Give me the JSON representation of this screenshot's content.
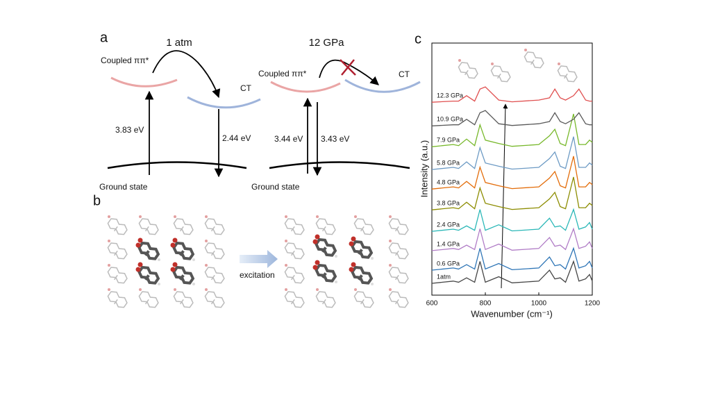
{
  "panel_a": {
    "label": "a",
    "left": {
      "title": "1 atm",
      "excited_label": "Coupled ππ*",
      "ct_label": "CT",
      "absorption": "3.83 eV",
      "emission": "2.44 eV",
      "ground_label": "Ground state"
    },
    "right": {
      "title": "12 GPa",
      "excited_label": "Coupled ππ*",
      "ct_label": "CT",
      "absorption": "3.44 eV",
      "emission": "3.43 eV",
      "ground_label": "Ground state"
    }
  },
  "panel_b": {
    "label": "b",
    "arrow_label": "excitation"
  },
  "chart_data": {
    "type": "line",
    "label": "c",
    "x_label": "Wavenumber (cm⁻¹)",
    "y_label": "Intensity (a.u.)",
    "x": [
      600,
      680,
      700,
      730,
      760,
      780,
      800,
      850,
      900,
      1000,
      1040,
      1060,
      1080,
      1100,
      1130,
      1150,
      1175,
      1190,
      1200
    ],
    "xlim": [
      600,
      1200
    ],
    "xticks": [
      600,
      800,
      1000,
      1200
    ],
    "ylim": [
      0,
      11.5
    ],
    "series": [
      {
        "name": "1atm",
        "color": "#454545",
        "values": [
          0.54,
          0.64,
          0.59,
          0.79,
          0.59,
          1.54,
          0.59,
          0.84,
          0.56,
          0.64,
          1.14,
          0.74,
          0.79,
          0.59,
          1.54,
          0.64,
          0.74,
          0.94,
          0.64
        ]
      },
      {
        "name": "0.6 GPa",
        "color": "#2e75b6",
        "values": [
          1.14,
          1.24,
          1.19,
          1.39,
          1.19,
          2.14,
          1.19,
          1.44,
          1.16,
          1.24,
          1.74,
          1.34,
          1.39,
          1.19,
          2.14,
          1.24,
          1.34,
          1.54,
          1.24
        ]
      },
      {
        "name": "1.4 GPa",
        "color": "#b07cc6",
        "values": [
          2.03,
          2.13,
          2.08,
          2.28,
          2.08,
          3.03,
          2.08,
          2.33,
          2.05,
          2.13,
          2.63,
          2.23,
          2.28,
          2.08,
          3.03,
          2.13,
          2.23,
          2.43,
          2.13
        ]
      },
      {
        "name": "2.4 GPa",
        "color": "#2ab7b7",
        "values": [
          2.91,
          3.01,
          2.96,
          3.16,
          2.96,
          3.91,
          2.96,
          3.21,
          2.93,
          3.01,
          3.51,
          3.11,
          3.16,
          2.96,
          3.91,
          3.01,
          3.11,
          3.31,
          3.01
        ]
      },
      {
        "name": "3.8 GPa",
        "color": "#8c8c00",
        "values": [
          3.89,
          3.99,
          3.94,
          4.24,
          3.94,
          4.89,
          4.19,
          4.04,
          3.91,
          3.99,
          4.39,
          4.69,
          4.04,
          3.94,
          5.39,
          3.99,
          3.99,
          4.19,
          4.09
        ]
      },
      {
        "name": "4.8 GPa",
        "color": "#e36c09",
        "values": [
          4.84,
          4.94,
          4.89,
          5.19,
          4.89,
          5.84,
          5.14,
          4.99,
          4.86,
          4.94,
          5.34,
          5.64,
          4.99,
          4.89,
          6.34,
          4.94,
          4.94,
          5.14,
          5.04
        ]
      },
      {
        "name": "5.8 GPa",
        "color": "#6c9ac4",
        "values": [
          5.73,
          5.83,
          5.78,
          6.08,
          5.78,
          6.73,
          6.03,
          5.88,
          5.75,
          5.83,
          6.23,
          6.53,
          5.88,
          5.78,
          7.23,
          5.83,
          5.83,
          6.03,
          5.93
        ]
      },
      {
        "name": "7.9 GPa",
        "color": "#77b82a",
        "values": [
          6.77,
          6.87,
          6.82,
          7.12,
          6.82,
          7.77,
          7.07,
          6.92,
          6.79,
          6.87,
          7.27,
          7.57,
          6.92,
          6.82,
          8.27,
          6.87,
          6.87,
          7.07,
          6.97
        ]
      },
      {
        "name": "10.9 GPa",
        "color": "#595959",
        "values": [
          7.72,
          7.77,
          7.77,
          8.02,
          7.77,
          8.32,
          8.42,
          7.82,
          7.74,
          7.82,
          7.92,
          8.32,
          7.92,
          7.82,
          8.02,
          8.32,
          7.82,
          7.77,
          7.77
        ]
      },
      {
        "name": "12.3 GPa",
        "color": "#e05050",
        "values": [
          8.8,
          8.85,
          8.85,
          9.1,
          8.85,
          9.4,
          9.5,
          8.9,
          8.82,
          8.9,
          9.0,
          9.4,
          9.0,
          8.9,
          9.1,
          9.4,
          8.9,
          8.85,
          8.85
        ]
      }
    ]
  }
}
